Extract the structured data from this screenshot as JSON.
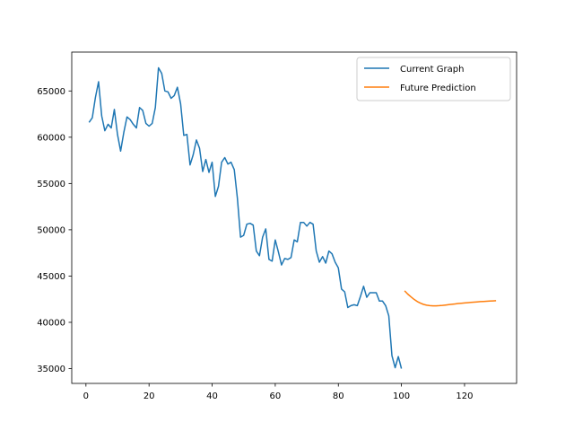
{
  "chart_data": {
    "type": "line",
    "title": "",
    "xlabel": "",
    "ylabel": "",
    "xlim": [
      -4.5,
      136.5
    ],
    "ylim": [
      33400,
      69200
    ],
    "x_ticks": [
      0,
      20,
      40,
      60,
      80,
      100,
      120
    ],
    "y_ticks": [
      35000,
      40000,
      45000,
      50000,
      55000,
      60000,
      65000
    ],
    "grid": false,
    "legend": {
      "placement": "top-right"
    },
    "series": [
      {
        "name": "Current Graph",
        "color": "#1f77b4",
        "x": [
          1,
          2,
          3,
          4,
          5,
          6,
          7,
          8,
          9,
          10,
          11,
          12,
          13,
          14,
          15,
          16,
          17,
          18,
          19,
          20,
          21,
          22,
          23,
          24,
          25,
          26,
          27,
          28,
          29,
          30,
          31,
          32,
          33,
          34,
          35,
          36,
          37,
          38,
          39,
          40,
          41,
          42,
          43,
          44,
          45,
          46,
          47,
          48,
          49,
          50,
          51,
          52,
          53,
          54,
          55,
          56,
          57,
          58,
          59,
          60,
          61,
          62,
          63,
          64,
          65,
          66,
          67,
          68,
          69,
          70,
          71,
          72,
          73,
          74,
          75,
          76,
          77,
          78,
          79,
          80,
          81,
          82,
          83,
          84,
          85,
          86,
          87,
          88,
          89,
          90,
          91,
          92,
          93,
          94,
          95,
          96,
          97,
          98,
          99,
          100
        ],
        "y": [
          61600,
          62100,
          64300,
          66000,
          62300,
          60700,
          61400,
          61000,
          63000,
          60300,
          58500,
          60500,
          62200,
          61900,
          61400,
          61000,
          63200,
          62900,
          61500,
          61200,
          61500,
          63200,
          67500,
          66900,
          65000,
          64900,
          64200,
          64500,
          65400,
          63600,
          60200,
          60300,
          57000,
          58100,
          59700,
          58800,
          56300,
          57600,
          56200,
          57300,
          53600,
          54700,
          57300,
          57800,
          57100,
          57300,
          56500,
          53400,
          49200,
          49400,
          50600,
          50700,
          50500,
          47700,
          47200,
          49200,
          50100,
          46800,
          46600,
          48900,
          47600,
          46200,
          46900,
          46800,
          47000,
          48900,
          48700,
          50800,
          50800,
          50400,
          50800,
          50600,
          47700,
          46500,
          47100,
          46400,
          47700,
          47400,
          46500,
          45900,
          43600,
          43300,
          41600,
          41800,
          41900,
          41800,
          42800,
          43900,
          42700,
          43200,
          43200,
          43200,
          42300,
          42300,
          41800,
          40700,
          36400,
          35100,
          36300,
          35000
        ]
      },
      {
        "name": "Future Prediction",
        "color": "#ff7f0e",
        "x": [
          101,
          102,
          103,
          104,
          105,
          106,
          107,
          108,
          109,
          110,
          111,
          112,
          113,
          114,
          115,
          116,
          117,
          118,
          119,
          120,
          121,
          122,
          123,
          124,
          125,
          126,
          127,
          128,
          129,
          130
        ],
        "y": [
          43400,
          43050,
          42750,
          42480,
          42250,
          42070,
          41940,
          41850,
          41800,
          41780,
          41780,
          41800,
          41830,
          41870,
          41910,
          41950,
          41990,
          42030,
          42060,
          42090,
          42120,
          42150,
          42180,
          42210,
          42240,
          42260,
          42280,
          42300,
          42320,
          42340
        ]
      }
    ]
  }
}
